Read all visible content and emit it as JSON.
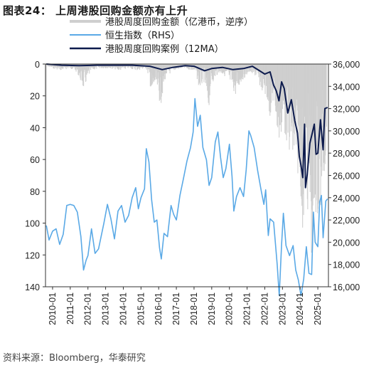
{
  "header": {
    "figure_label": "图表24：",
    "title": "上周港股回购金额亦有上升"
  },
  "footer": {
    "source": "资料来源：Bloomberg，华泰研究"
  },
  "colors": {
    "weekly_bar": "#cfcfcf",
    "hsi_line": "#5aa9e6",
    "ma_line": "#0d1b4d"
  },
  "chart_data": {
    "type": "line",
    "legend": [
      "港股周度回购金额（亿港币，逆序）",
      "恒生指数（RHS）",
      "港股周度回购案例（12MA）"
    ],
    "x_ticks": [
      "2010-01",
      "2011-01",
      "2012-01",
      "2013-01",
      "2014-01",
      "2015-01",
      "2016-01",
      "2017-01",
      "2018-01",
      "2019-01",
      "2020-01",
      "2021-01",
      "2022-01",
      "2023-01",
      "2024-01",
      "2025-01"
    ],
    "x_range": [
      2009.6,
      2025.6
    ],
    "y_left": {
      "label": "",
      "ticks": [
        0,
        20,
        40,
        60,
        80,
        100,
        120,
        140
      ],
      "range": [
        0,
        140
      ],
      "inverted": true
    },
    "y_right": {
      "label": "",
      "ticks": [
        "16,000",
        "18,000",
        "20,000",
        "22,000",
        "24,000",
        "26,000",
        "28,000",
        "30,000",
        "32,000",
        "34,000",
        "36,000"
      ],
      "range": [
        16000,
        36000
      ]
    },
    "series": [
      {
        "name": "港股周度回购金额（亿港币，逆序）",
        "axis": "left",
        "style": "spiky",
        "points": [
          [
            2009.65,
            1
          ],
          [
            2010.0,
            2
          ],
          [
            2010.5,
            3
          ],
          [
            2011.0,
            2
          ],
          [
            2011.4,
            4
          ],
          [
            2011.75,
            12
          ],
          [
            2012.2,
            3
          ],
          [
            2012.7,
            2
          ],
          [
            2013.2,
            2
          ],
          [
            2013.8,
            3
          ],
          [
            2014.3,
            2
          ],
          [
            2014.8,
            3
          ],
          [
            2015.3,
            2
          ],
          [
            2015.5,
            8
          ],
          [
            2015.6,
            18
          ],
          [
            2015.8,
            10
          ],
          [
            2016.0,
            16
          ],
          [
            2016.1,
            20
          ],
          [
            2016.4,
            6
          ],
          [
            2016.9,
            3
          ],
          [
            2017.4,
            2
          ],
          [
            2017.9,
            3
          ],
          [
            2018.1,
            4
          ],
          [
            2018.3,
            12
          ],
          [
            2018.6,
            8
          ],
          [
            2018.8,
            25
          ],
          [
            2018.95,
            10
          ],
          [
            2019.4,
            4
          ],
          [
            2019.8,
            6
          ],
          [
            2020.2,
            12
          ],
          [
            2020.35,
            15
          ],
          [
            2020.7,
            8
          ],
          [
            2021.1,
            4
          ],
          [
            2021.5,
            6
          ],
          [
            2021.8,
            12
          ],
          [
            2022.0,
            14
          ],
          [
            2022.3,
            25
          ],
          [
            2022.5,
            18
          ],
          [
            2022.8,
            40
          ],
          [
            2023.0,
            30
          ],
          [
            2023.3,
            38
          ],
          [
            2023.6,
            50
          ],
          [
            2023.8,
            55
          ],
          [
            2024.0,
            48
          ],
          [
            2024.1,
            90
          ],
          [
            2024.3,
            60
          ],
          [
            2024.5,
            75
          ],
          [
            2024.7,
            100
          ],
          [
            2024.9,
            70
          ],
          [
            2025.1,
            80
          ],
          [
            2025.3,
            55
          ],
          [
            2025.5,
            48
          ]
        ]
      },
      {
        "name": "恒生指数（RHS）",
        "axis": "right",
        "points": [
          [
            2009.65,
            21500
          ],
          [
            2009.8,
            20200
          ],
          [
            2010.0,
            21000
          ],
          [
            2010.2,
            21200
          ],
          [
            2010.4,
            19800
          ],
          [
            2010.6,
            20700
          ],
          [
            2010.8,
            23300
          ],
          [
            2011.0,
            23400
          ],
          [
            2011.2,
            23300
          ],
          [
            2011.4,
            22700
          ],
          [
            2011.6,
            20500
          ],
          [
            2011.75,
            17500
          ],
          [
            2011.9,
            18400
          ],
          [
            2012.0,
            18800
          ],
          [
            2012.2,
            21200
          ],
          [
            2012.4,
            19000
          ],
          [
            2012.6,
            19400
          ],
          [
            2012.9,
            21700
          ],
          [
            2013.1,
            23400
          ],
          [
            2013.3,
            22100
          ],
          [
            2013.5,
            20300
          ],
          [
            2013.7,
            22800
          ],
          [
            2013.9,
            23300
          ],
          [
            2014.1,
            21800
          ],
          [
            2014.3,
            22400
          ],
          [
            2014.5,
            24000
          ],
          [
            2014.7,
            24900
          ],
          [
            2014.85,
            23000
          ],
          [
            2015.0,
            24000
          ],
          [
            2015.2,
            24800
          ],
          [
            2015.3,
            28400
          ],
          [
            2015.45,
            27200
          ],
          [
            2015.6,
            23800
          ],
          [
            2015.75,
            21800
          ],
          [
            2015.9,
            22000
          ],
          [
            2016.05,
            19500
          ],
          [
            2016.15,
            18500
          ],
          [
            2016.3,
            20800
          ],
          [
            2016.5,
            20500
          ],
          [
            2016.7,
            23300
          ],
          [
            2016.85,
            22500
          ],
          [
            2017.0,
            22000
          ],
          [
            2017.2,
            24200
          ],
          [
            2017.4,
            25700
          ],
          [
            2017.6,
            27300
          ],
          [
            2017.8,
            28500
          ],
          [
            2017.95,
            29900
          ],
          [
            2018.05,
            32900
          ],
          [
            2018.2,
            30400
          ],
          [
            2018.35,
            31400
          ],
          [
            2018.5,
            28500
          ],
          [
            2018.7,
            27400
          ],
          [
            2018.85,
            25100
          ],
          [
            2019.0,
            25800
          ],
          [
            2019.2,
            29000
          ],
          [
            2019.35,
            29900
          ],
          [
            2019.5,
            27600
          ],
          [
            2019.65,
            25800
          ],
          [
            2019.8,
            26600
          ],
          [
            2020.0,
            28800
          ],
          [
            2020.15,
            25900
          ],
          [
            2020.25,
            22800
          ],
          [
            2020.4,
            24100
          ],
          [
            2020.6,
            24900
          ],
          [
            2020.8,
            24100
          ],
          [
            2020.95,
            26500
          ],
          [
            2021.1,
            30000
          ],
          [
            2021.2,
            29600
          ],
          [
            2021.4,
            28500
          ],
          [
            2021.6,
            26400
          ],
          [
            2021.8,
            24600
          ],
          [
            2021.95,
            23400
          ],
          [
            2022.05,
            24700
          ],
          [
            2022.2,
            20600
          ],
          [
            2022.3,
            22100
          ],
          [
            2022.5,
            21800
          ],
          [
            2022.7,
            18000
          ],
          [
            2022.82,
            15200
          ],
          [
            2022.95,
            19800
          ],
          [
            2023.05,
            22600
          ],
          [
            2023.2,
            19700
          ],
          [
            2023.4,
            18800
          ],
          [
            2023.6,
            19700
          ],
          [
            2023.75,
            17500
          ],
          [
            2023.9,
            16600
          ],
          [
            2024.05,
            15200
          ],
          [
            2024.2,
            16700
          ],
          [
            2024.35,
            19600
          ],
          [
            2024.5,
            17200
          ],
          [
            2024.65,
            17100
          ],
          [
            2024.75,
            22700
          ],
          [
            2024.85,
            20000
          ],
          [
            2025.0,
            19600
          ],
          [
            2025.1,
            23600
          ],
          [
            2025.2,
            24200
          ],
          [
            2025.3,
            20400
          ],
          [
            2025.45,
            23700
          ],
          [
            2025.55,
            23900
          ]
        ]
      },
      {
        "name": "港股周度回购案例（12MA）",
        "axis": "right",
        "points": [
          [
            2009.65,
            36000
          ],
          [
            2010.5,
            35900
          ],
          [
            2011.5,
            35850
          ],
          [
            2012.5,
            35900
          ],
          [
            2013.5,
            35900
          ],
          [
            2014.5,
            35900
          ],
          [
            2015.5,
            35800
          ],
          [
            2016.2,
            35500
          ],
          [
            2016.8,
            35700
          ],
          [
            2017.5,
            35850
          ],
          [
            2018.0,
            35800
          ],
          [
            2018.6,
            35400
          ],
          [
            2019.0,
            35600
          ],
          [
            2019.6,
            35700
          ],
          [
            2020.2,
            35500
          ],
          [
            2020.8,
            35600
          ],
          [
            2021.3,
            35800
          ],
          [
            2021.7,
            35400
          ],
          [
            2022.0,
            35100
          ],
          [
            2022.3,
            35300
          ],
          [
            2022.5,
            34100
          ],
          [
            2022.65,
            33600
          ],
          [
            2022.8,
            32700
          ],
          [
            2022.95,
            34400
          ],
          [
            2023.1,
            33800
          ],
          [
            2023.3,
            31600
          ],
          [
            2023.5,
            32800
          ],
          [
            2023.7,
            30900
          ],
          [
            2023.85,
            29800
          ],
          [
            2023.95,
            27700
          ],
          [
            2024.05,
            26900
          ],
          [
            2024.15,
            25800
          ],
          [
            2024.25,
            30600
          ],
          [
            2024.3,
            24900
          ],
          [
            2024.4,
            26100
          ],
          [
            2024.55,
            28900
          ],
          [
            2024.7,
            29900
          ],
          [
            2024.8,
            30600
          ],
          [
            2024.9,
            27900
          ],
          [
            2025.0,
            28000
          ],
          [
            2025.15,
            31000
          ],
          [
            2025.3,
            28300
          ],
          [
            2025.4,
            32000
          ],
          [
            2025.55,
            32100
          ]
        ]
      }
    ]
  }
}
